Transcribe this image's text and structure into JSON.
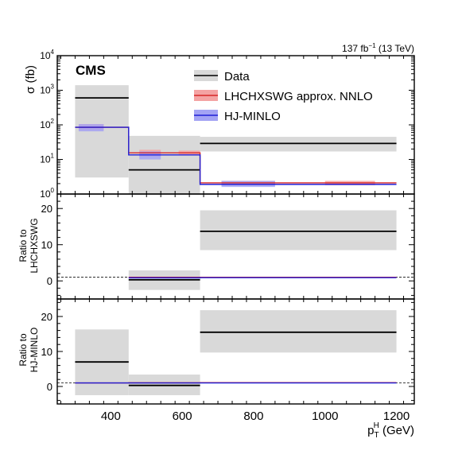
{
  "header": {
    "lumi_value": "137 fb",
    "lumi_exp": "−1",
    "lumi_tail": " (13 TeV)",
    "experiment": "CMS"
  },
  "axes": {
    "top_ylabel": "σ (fb)",
    "mid_ylabel_1": "Ratio to",
    "mid_ylabel_2": "LHCHXSWG",
    "bot_ylabel_1": "Ratio to",
    "bot_ylabel_2": "HJ-MINLO",
    "xlabel_p": "p",
    "xlabel_sub": "T",
    "xlabel_sup": "H",
    "xlabel_unit": " (GeV)"
  },
  "legend": {
    "data": "Data",
    "lhc": "LHCHXSWG approx. NNLO",
    "hj": "HJ-MINLO"
  },
  "colors": {
    "data_line": "#000000",
    "data_band": "#d9d9d9",
    "lhc_line": "#d62728",
    "lhc_band": "#f4a3a3",
    "hj_line": "#1f1fd6",
    "hj_band": "#a3a3f4"
  },
  "chart_data": [
    {
      "type": "step",
      "panel": "cross-section",
      "ylabel": "σ (fb)",
      "yscale": "log",
      "ylim": [
        1,
        10000
      ],
      "xlim": [
        250,
        1250
      ],
      "yticks": [
        "10^0",
        "10^1",
        "10^2",
        "10^3",
        "10^4"
      ],
      "bins": [
        [
          300,
          450
        ],
        [
          450,
          650
        ],
        [
          650,
          1200
        ]
      ],
      "series": [
        {
          "name": "Data",
          "values": [
            600,
            5,
            29
          ],
          "band": [
            [
              3,
              1400
            ],
            [
              0.9,
              48
            ],
            [
              17,
              45
            ]
          ]
        },
        {
          "name": "LHCHXSWG approx. NNLO",
          "values": [
            85,
            15.5,
            2.1
          ],
          "band_boxes": [
            [
              310,
              380,
              70,
              105
            ],
            [
              480,
              540,
              12,
              19
            ],
            [
              590,
              650,
              13,
              18
            ],
            [
              710,
              860,
              1.8,
              2.4
            ],
            [
              1000,
              1140,
              1.8,
              2.4
            ]
          ]
        },
        {
          "name": "HJ-MINLO",
          "values": [
            85,
            13.5,
            1.9
          ],
          "band_boxes": [
            [
              310,
              380,
              65,
              105
            ],
            [
              480,
              540,
              10,
              17
            ],
            [
              710,
              860,
              1.6,
              2.4
            ]
          ]
        }
      ]
    },
    {
      "type": "step",
      "panel": "ratio-lhchxswg",
      "ylabel": "Ratio to LHCHXSWG",
      "ylim": [
        -5,
        24
      ],
      "xlim": [
        250,
        1250
      ],
      "yticks": [
        0,
        10,
        20
      ],
      "reference_line": 1,
      "bins": [
        [
          450,
          650
        ],
        [
          650,
          1200
        ]
      ],
      "series": [
        {
          "name": "Data",
          "values": [
            0.3,
            13.7
          ],
          "band": [
            [
              -2.5,
              2.9
            ],
            [
              8.5,
              19.5
            ]
          ]
        },
        {
          "name": "LHCHXSWG approx. NNLO",
          "values": [
            1,
            1
          ]
        },
        {
          "name": "HJ-MINLO",
          "values": [
            0.85,
            0.9
          ]
        }
      ]
    },
    {
      "type": "step",
      "panel": "ratio-hj-minlo",
      "ylabel": "Ratio to HJ-MINLO",
      "ylim": [
        -5,
        25
      ],
      "xlim": [
        250,
        1250
      ],
      "xticks": [
        400,
        600,
        800,
        1000,
        1200
      ],
      "reference_line": 1,
      "xlabel": "p_T^H (GeV)",
      "bins": [
        [
          300,
          450
        ],
        [
          450,
          650
        ],
        [
          650,
          1200
        ]
      ],
      "series": [
        {
          "name": "Data",
          "values": [
            7,
            0.3,
            15.5
          ],
          "band": [
            [
              -2.5,
              16.3
            ],
            [
              -2.5,
              3.4
            ],
            [
              9.7,
              21.8
            ]
          ]
        },
        {
          "name": "LHCHXSWG approx. NNLO",
          "values": [
            1,
            1.05,
            1.1
          ]
        },
        {
          "name": "HJ-MINLO",
          "values": [
            1,
            1,
            1
          ]
        }
      ]
    }
  ]
}
